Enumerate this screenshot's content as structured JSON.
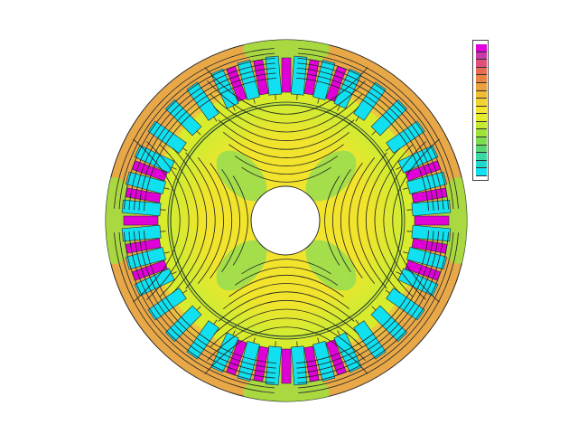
{
  "figure": {
    "subject": "machine-cross-section",
    "background_color": "#ffffff",
    "outline_color": "#2a2a2a",
    "field_line_color": "#222222",
    "hole_color": "#ffffff"
  },
  "colormap": {
    "levels_high_to_low": [
      "#e000d8",
      "#c83aa8",
      "#e0507a",
      "#e66c52",
      "#ea8444",
      "#eea040",
      "#f0bc34",
      "#f2d22e",
      "#f4e52a",
      "#e2ec28",
      "#c4ea2e",
      "#a0e43a",
      "#7cdc52",
      "#58d672",
      "#38d8a0",
      "#1ed8cc",
      "#10e0f0"
    ]
  },
  "regions": {
    "stator_yoke": "#e8a848",
    "stator_yoke_inner": "#eed23a",
    "stator_teeth_strong": "#d8ec2e",
    "stator_teeth_weak": "#9ee040",
    "slots": "#10e0f0",
    "conductors": "#e000d8",
    "air_gap": "#b8e838",
    "rotor_outer": "#f2e42c",
    "rotor_inner": "#d0ec32",
    "rotor_weak": "#64d866",
    "shaft": "#ffffff"
  }
}
